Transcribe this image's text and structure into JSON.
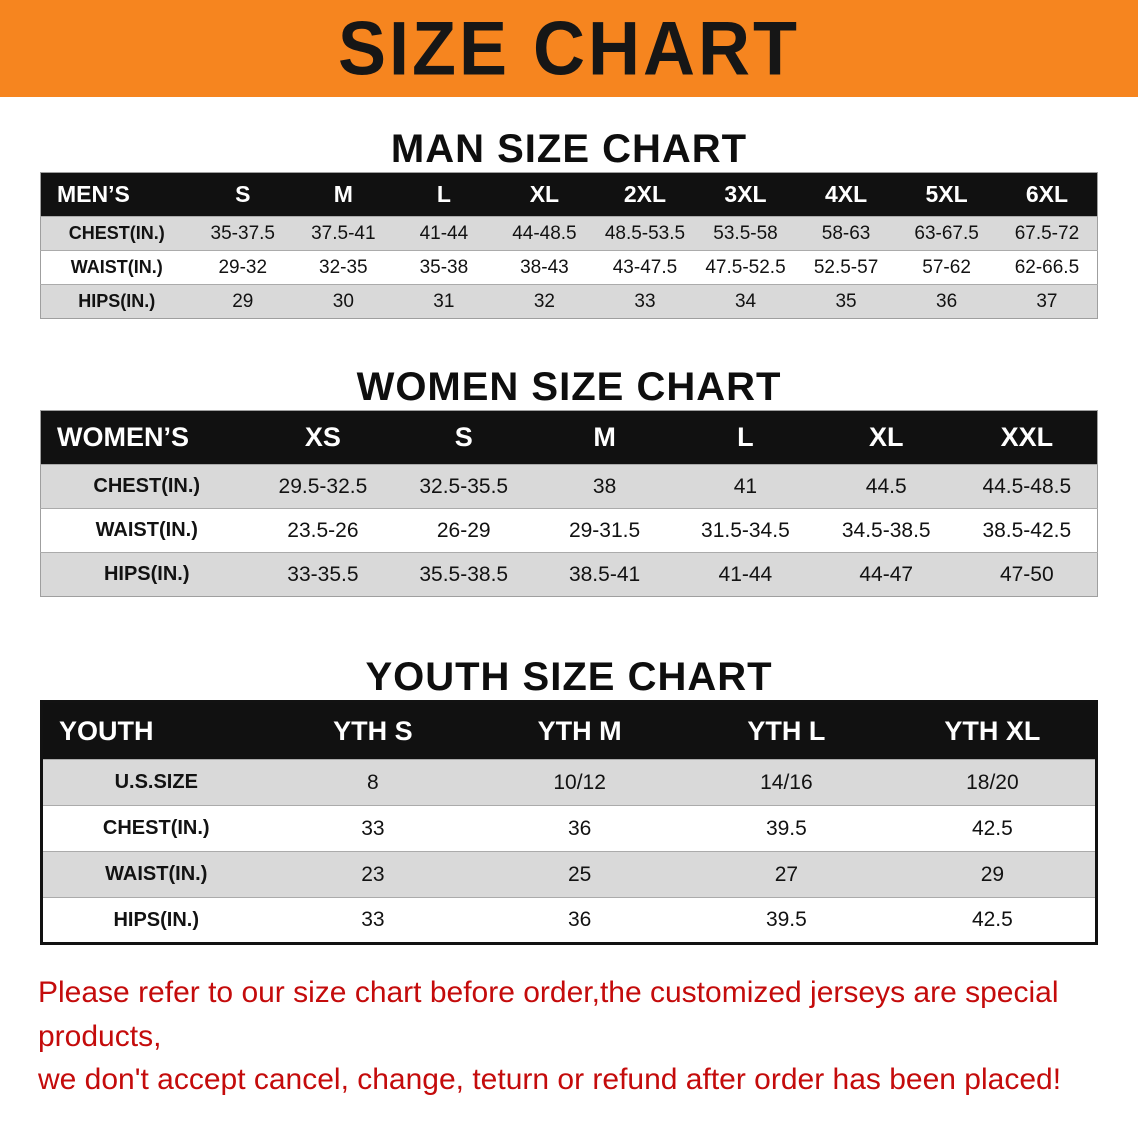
{
  "banner": {
    "title": "SIZE CHART"
  },
  "sections": [
    {
      "id": "men",
      "title": "MAN SIZE CHART",
      "header": [
        "MEN’S",
        "S",
        "M",
        "L",
        "XL",
        "2XL",
        "3XL",
        "4XL",
        "5XL",
        "6XL"
      ],
      "rows": [
        [
          "CHEST(IN.)",
          "35-37.5",
          "37.5-41",
          "41-44",
          "44-48.5",
          "48.5-53.5",
          "53.5-58",
          "58-63",
          "63-67.5",
          "67.5-72"
        ],
        [
          "WAIST(IN.)",
          "29-32",
          "32-35",
          "35-38",
          "38-43",
          "43-47.5",
          "47.5-52.5",
          "52.5-57",
          "57-62",
          "62-66.5"
        ],
        [
          "HIPS(IN.)",
          "29",
          "30",
          "31",
          "32",
          "33",
          "34",
          "35",
          "36",
          "37"
        ]
      ]
    },
    {
      "id": "women",
      "title": "WOMEN SIZE CHART",
      "header": [
        "WOMEN’S",
        "XS",
        "S",
        "M",
        "L",
        "XL",
        "XXL"
      ],
      "rows": [
        [
          "CHEST(IN.)",
          "29.5-32.5",
          "32.5-35.5",
          "38",
          "41",
          "44.5",
          "44.5-48.5"
        ],
        [
          "WAIST(IN.)",
          "23.5-26",
          "26-29",
          "29-31.5",
          "31.5-34.5",
          "34.5-38.5",
          "38.5-42.5"
        ],
        [
          "HIPS(IN.)",
          "33-35.5",
          "35.5-38.5",
          "38.5-41",
          "41-44",
          "44-47",
          "47-50"
        ]
      ]
    },
    {
      "id": "youth",
      "title": "YOUTH SIZE CHART",
      "header": [
        "YOUTH",
        "YTH S",
        "YTH M",
        "YTH L",
        "YTH XL"
      ],
      "rows": [
        [
          "U.S.SIZE",
          "8",
          "10/12",
          "14/16",
          "18/20"
        ],
        [
          "CHEST(IN.)",
          "33",
          "36",
          "39.5",
          "42.5"
        ],
        [
          "WAIST(IN.)",
          "23",
          "25",
          "27",
          "29"
        ],
        [
          "HIPS(IN.)",
          "33",
          "36",
          "39.5",
          "42.5"
        ]
      ]
    }
  ],
  "footer": {
    "line1": "Please refer to our size chart before order,the customized jerseys are special products,",
    "line2": "we don't accept cancel, change, teturn or refund after order has been placed!"
  },
  "colors": {
    "banner_bg": "#F6851F",
    "header_bg": "#111111",
    "row_alt": "#d9d9d9",
    "footer_text": "#c40b0b"
  }
}
